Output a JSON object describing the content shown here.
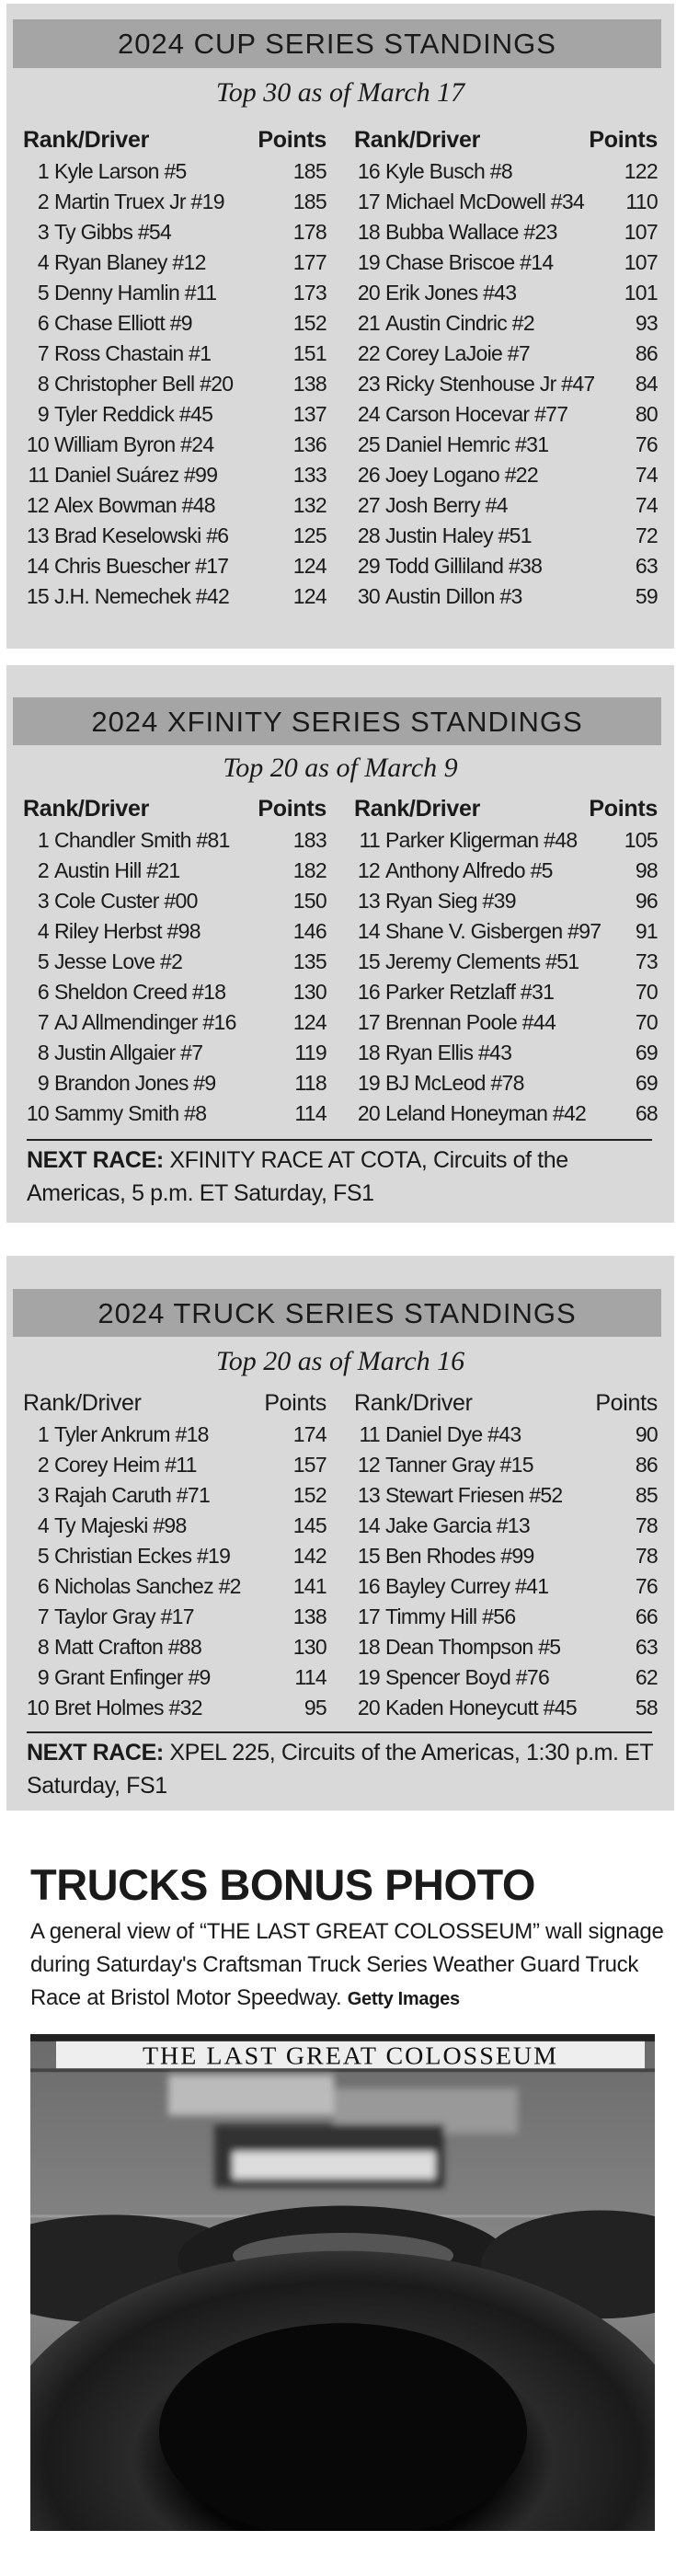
{
  "cup": {
    "title": "2024 CUP SERIES STANDINGS",
    "subtitle": "Top 30 as of March 17",
    "col_header_driver": "Rank/Driver",
    "col_header_points": "Points",
    "left": [
      {
        "rank": "1",
        "driver": "Kyle Larson #5",
        "points": "185"
      },
      {
        "rank": "2",
        "driver": "Martin Truex Jr #19",
        "points": "185"
      },
      {
        "rank": "3",
        "driver": "Ty Gibbs #54",
        "points": "178"
      },
      {
        "rank": "4",
        "driver": "Ryan Blaney #12",
        "points": "177"
      },
      {
        "rank": "5",
        "driver": "Denny Hamlin #11",
        "points": "173"
      },
      {
        "rank": "6",
        "driver": "Chase Elliott #9",
        "points": "152"
      },
      {
        "rank": "7",
        "driver": "Ross Chastain #1",
        "points": "151"
      },
      {
        "rank": "8",
        "driver": "Christopher Bell #20",
        "points": "138"
      },
      {
        "rank": "9",
        "driver": "Tyler Reddick #45",
        "points": "137"
      },
      {
        "rank": "10",
        "driver": "William Byron #24",
        "points": "136"
      },
      {
        "rank": "11",
        "driver": "Daniel Suárez #99",
        "points": "133"
      },
      {
        "rank": "12",
        "driver": "Alex Bowman #48",
        "points": "132"
      },
      {
        "rank": "13",
        "driver": "Brad Keselowski #6",
        "points": "125"
      },
      {
        "rank": "14",
        "driver": "Chris Buescher #17",
        "points": "124"
      },
      {
        "rank": "15",
        "driver": "J.H. Nemechek #42",
        "points": "124"
      }
    ],
    "right": [
      {
        "rank": "16",
        "driver": "Kyle Busch #8",
        "points": "122"
      },
      {
        "rank": "17",
        "driver": "Michael McDowell #34",
        "points": "110"
      },
      {
        "rank": "18",
        "driver": "Bubba Wallace #23",
        "points": "107"
      },
      {
        "rank": "19",
        "driver": "Chase Briscoe #14",
        "points": "107"
      },
      {
        "rank": "20",
        "driver": "Erik Jones #43",
        "points": "101"
      },
      {
        "rank": "21",
        "driver": "Austin Cindric #2",
        "points": "93"
      },
      {
        "rank": "22",
        "driver": "Corey LaJoie #7",
        "points": "86"
      },
      {
        "rank": "23",
        "driver": "Ricky Stenhouse Jr #47",
        "points": "84"
      },
      {
        "rank": "24",
        "driver": "Carson Hocevar #77",
        "points": "80"
      },
      {
        "rank": "25",
        "driver": "Daniel Hemric #31",
        "points": "76"
      },
      {
        "rank": "26",
        "driver": "Joey Logano #22",
        "points": "74"
      },
      {
        "rank": "27",
        "driver": "Josh Berry #4",
        "points": "74"
      },
      {
        "rank": "28",
        "driver": "Justin Haley #51",
        "points": "72"
      },
      {
        "rank": "29",
        "driver": "Todd Gilliland #38",
        "points": "63"
      },
      {
        "rank": "30",
        "driver": "Austin Dillon #3",
        "points": "59"
      }
    ]
  },
  "xfinity": {
    "title": "2024 XFINITY SERIES STANDINGS",
    "subtitle": "Top 20 as of March 9",
    "col_header_driver": "Rank/Driver",
    "col_header_points": "Points",
    "left": [
      {
        "rank": "1",
        "driver": "Chandler Smith #81",
        "points": "183"
      },
      {
        "rank": "2",
        "driver": "Austin Hill #21",
        "points": "182"
      },
      {
        "rank": "3",
        "driver": "Cole Custer #00",
        "points": "150"
      },
      {
        "rank": "4",
        "driver": "Riley Herbst #98",
        "points": "146"
      },
      {
        "rank": "5",
        "driver": "Jesse Love #2",
        "points": "135"
      },
      {
        "rank": "6",
        "driver": "Sheldon Creed #18",
        "points": "130"
      },
      {
        "rank": "7",
        "driver": "AJ Allmendinger #16",
        "points": "124"
      },
      {
        "rank": "8",
        "driver": "Justin Allgaier #7",
        "points": "119"
      },
      {
        "rank": "9",
        "driver": "Brandon Jones #9",
        "points": "118"
      },
      {
        "rank": "10",
        "driver": "Sammy Smith #8",
        "points": "114"
      }
    ],
    "right": [
      {
        "rank": "11",
        "driver": "Parker Kligerman #48",
        "points": "105"
      },
      {
        "rank": "12",
        "driver": "Anthony Alfredo #5",
        "points": "98"
      },
      {
        "rank": "13",
        "driver": "Ryan Sieg #39",
        "points": "96"
      },
      {
        "rank": "14",
        "driver": "Shane V. Gisbergen #97",
        "points": "91"
      },
      {
        "rank": "15",
        "driver": "Jeremy Clements #51",
        "points": "73"
      },
      {
        "rank": "16",
        "driver": "Parker Retzlaff #31",
        "points": "70"
      },
      {
        "rank": "17",
        "driver": "Brennan Poole #44",
        "points": "70"
      },
      {
        "rank": "18",
        "driver": "Ryan Ellis #43",
        "points": "69"
      },
      {
        "rank": "19",
        "driver": "BJ McLeod #78",
        "points": "69"
      },
      {
        "rank": "20",
        "driver": "Leland Honeyman #42",
        "points": "68"
      }
    ],
    "next_label": "NEXT RACE:",
    "next_text": " XFINITY RACE AT COTA, Circuits of the Americas, 5 p.m. ET Saturday, FS1"
  },
  "truck": {
    "title": "2024 TRUCK SERIES STANDINGS",
    "subtitle": "Top 20 as of March 16",
    "col_header_driver": "Rank/Driver",
    "col_header_points": "Points",
    "left": [
      {
        "rank": "1",
        "driver": "Tyler Ankrum #18",
        "points": "174"
      },
      {
        "rank": "2",
        "driver": "Corey Heim #11",
        "points": "157"
      },
      {
        "rank": "3",
        "driver": "Rajah Caruth #71",
        "points": "152"
      },
      {
        "rank": "4",
        "driver": "Ty Majeski #98",
        "points": "145"
      },
      {
        "rank": "5",
        "driver": "Christian Eckes #19",
        "points": "142"
      },
      {
        "rank": "6",
        "driver": "Nicholas Sanchez #2",
        "points": "141"
      },
      {
        "rank": "7",
        "driver": "Taylor Gray #17",
        "points": "138"
      },
      {
        "rank": "8",
        "driver": "Matt Crafton #88",
        "points": "130"
      },
      {
        "rank": "9",
        "driver": "Grant Enfinger #9",
        "points": "114"
      },
      {
        "rank": "10",
        "driver": "Bret Holmes #32",
        "points": "95"
      }
    ],
    "right": [
      {
        "rank": "11",
        "driver": "Daniel Dye #43",
        "points": "90"
      },
      {
        "rank": "12",
        "driver": "Tanner Gray #15",
        "points": "86"
      },
      {
        "rank": "13",
        "driver": "Stewart Friesen #52",
        "points": "85"
      },
      {
        "rank": "14",
        "driver": "Jake Garcia #13",
        "points": "78"
      },
      {
        "rank": "15",
        "driver": "Ben Rhodes #99",
        "points": "78"
      },
      {
        "rank": "16",
        "driver": "Bayley Currey #41",
        "points": "76"
      },
      {
        "rank": "17",
        "driver": "Timmy Hill #56",
        "points": "66"
      },
      {
        "rank": "18",
        "driver": "Dean Thompson #5",
        "points": "63"
      },
      {
        "rank": "19",
        "driver": "Spencer Boyd #76",
        "points": "62"
      },
      {
        "rank": "20",
        "driver": "Kaden Honeycutt #45",
        "points": "58"
      }
    ],
    "next_label": "NEXT RACE:",
    "next_text": " XPEL 225, Circuits of the Americas, 1:30 p.m. ET Saturday, FS1"
  },
  "bonus_photo": {
    "title": "TRUCKS BONUS PHOTO",
    "caption": "A general view of “THE LAST GREAT COLOSSEUM” wall signage during Saturday's Craftsman Truck Series Weather Guard Truck Race at Bristol Motor Speedway. ",
    "credit": "Getty Images",
    "sign_text": "THE LAST GREAT COLOSSEUM"
  },
  "colors": {
    "panel_bg": "#d9d9d9",
    "header_bar": "#a5a5a5",
    "text": "#1a1a1a"
  }
}
